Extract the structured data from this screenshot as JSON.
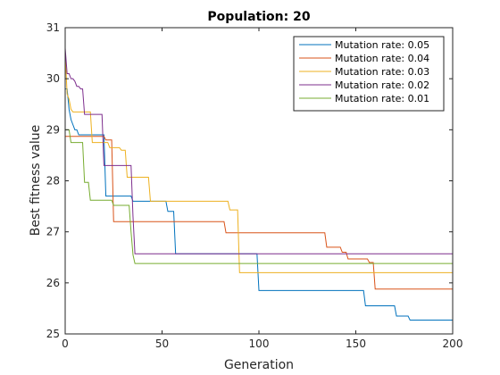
{
  "chart_data": {
    "type": "line",
    "title": "Population: 20",
    "xlabel": "Generation",
    "ylabel": "Best fitness value",
    "xlim": [
      0,
      200
    ],
    "ylim": [
      25,
      31
    ],
    "xticks": [
      "0",
      "50",
      "100",
      "150",
      "200"
    ],
    "yticks": [
      "25",
      "26",
      "27",
      "28",
      "29",
      "30",
      "31"
    ],
    "grid": false,
    "legend_position": "top-right",
    "series": [
      {
        "name": "Mutation rate: 0.05",
        "color": "#0072BD",
        "x": [
          0,
          1,
          2,
          3,
          4,
          5,
          6,
          7,
          8,
          20,
          21,
          34,
          35,
          52,
          53,
          56,
          57,
          99,
          100,
          154,
          155,
          170,
          171,
          177,
          178,
          200
        ],
        "y": [
          29.8,
          29.8,
          29.4,
          29.2,
          29.1,
          29.0,
          29.0,
          28.9,
          28.9,
          28.9,
          27.7,
          27.7,
          27.6,
          27.6,
          27.4,
          27.4,
          26.57,
          26.57,
          25.85,
          25.85,
          25.55,
          25.55,
          25.35,
          25.35,
          25.27,
          25.27
        ]
      },
      {
        "name": "Mutation rate: 0.04",
        "color": "#D95319",
        "x": [
          0,
          1,
          20,
          21,
          24,
          25,
          82,
          83,
          134,
          135,
          142,
          143,
          145,
          146,
          156,
          157,
          159,
          160,
          200
        ],
        "y": [
          28.87,
          28.87,
          28.87,
          28.8,
          28.8,
          27.2,
          27.2,
          26.98,
          26.98,
          26.7,
          26.7,
          26.6,
          26.6,
          26.47,
          26.47,
          26.4,
          26.4,
          25.88,
          25.88
        ]
      },
      {
        "name": "Mutation rate: 0.03",
        "color": "#EDB120",
        "x": [
          0,
          1,
          2,
          3,
          4,
          13,
          14,
          22,
          23,
          28,
          29,
          31,
          32,
          43,
          44,
          84,
          85,
          89,
          90,
          200
        ],
        "y": [
          30.5,
          29.7,
          29.6,
          29.4,
          29.35,
          29.35,
          28.75,
          28.75,
          28.65,
          28.65,
          28.6,
          28.6,
          28.07,
          28.07,
          27.6,
          27.6,
          27.43,
          27.43,
          26.2,
          26.2
        ]
      },
      {
        "name": "Mutation rate: 0.02",
        "color": "#7E2F8E",
        "x": [
          0,
          1,
          2,
          3,
          4,
          5,
          6,
          7,
          8,
          9,
          10,
          19,
          20,
          34,
          35,
          36,
          200
        ],
        "y": [
          30.6,
          30.1,
          30.1,
          30.0,
          30.0,
          29.95,
          29.85,
          29.85,
          29.8,
          29.8,
          29.3,
          29.3,
          28.3,
          28.3,
          27.3,
          26.57,
          26.57
        ]
      },
      {
        "name": "Mutation rate: 0.01",
        "color": "#77AC30",
        "x": [
          0,
          2,
          3,
          9,
          10,
          12,
          13,
          24,
          25,
          33,
          34,
          35,
          36,
          200
        ],
        "y": [
          29.0,
          29.0,
          28.75,
          28.75,
          27.97,
          27.97,
          27.62,
          27.62,
          27.52,
          27.52,
          27.0,
          26.55,
          26.38,
          26.38
        ]
      }
    ]
  }
}
